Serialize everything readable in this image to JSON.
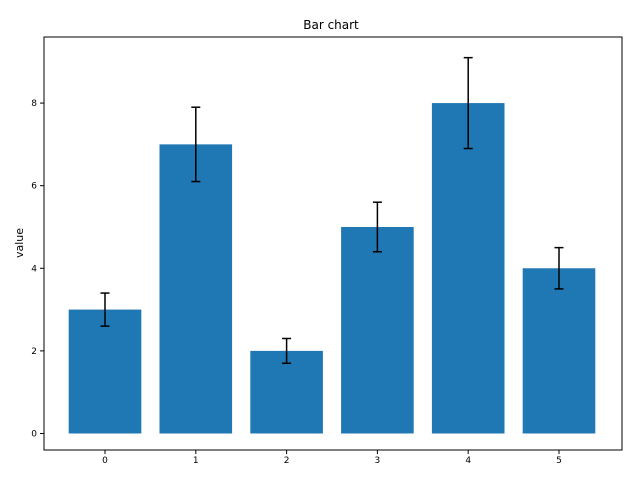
{
  "chart_data": {
    "type": "bar",
    "title": "Bar chart",
    "xlabel": "",
    "ylabel": "value",
    "categories": [
      "0",
      "1",
      "2",
      "3",
      "4",
      "5"
    ],
    "values": [
      3,
      7,
      2,
      5,
      8,
      4
    ],
    "error_lower": [
      2.6,
      6.1,
      1.7,
      4.4,
      6.9,
      3.5
    ],
    "error_upper": [
      3.4,
      7.9,
      2.3,
      5.6,
      9.1,
      4.5
    ],
    "ylim": [
      -0.4,
      9.6
    ],
    "yticks": [
      0,
      2,
      4,
      6,
      8
    ],
    "grid": false,
    "bar_color": "#1f77b4",
    "error_color": "#000000"
  }
}
